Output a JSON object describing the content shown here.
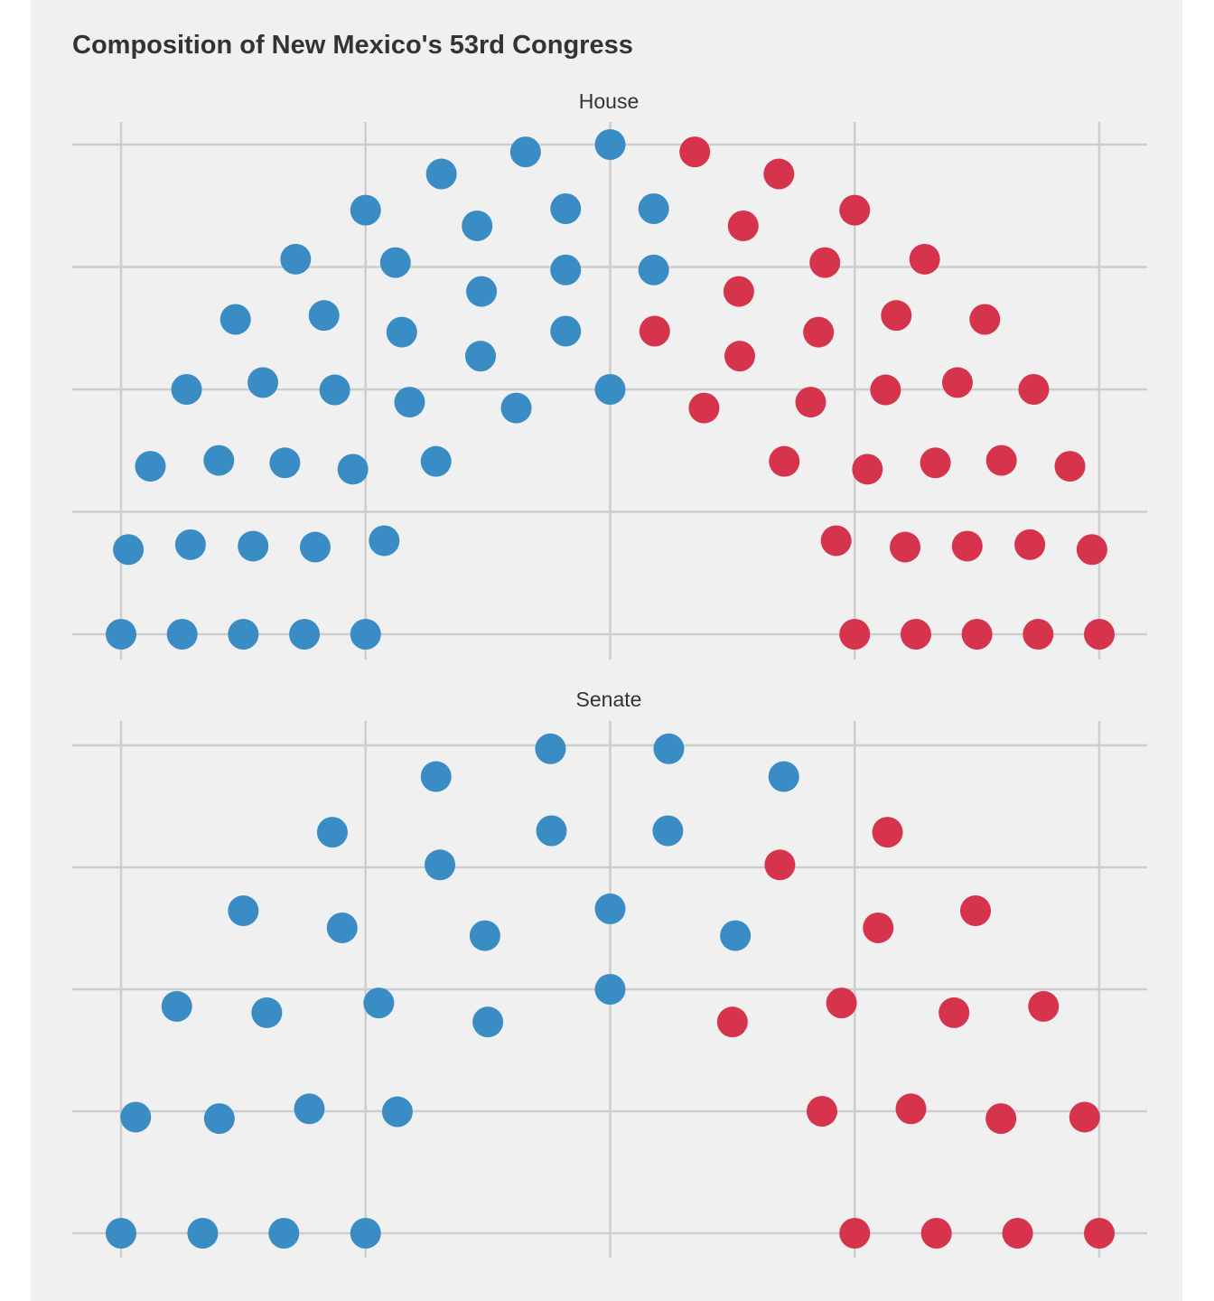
{
  "title": "Composition of New Mexico's 53rd Congress",
  "colors": {
    "democrat": "#3a8cc4",
    "republican": "#d6334c",
    "background": "#f0f0f0",
    "grid": "#cdcdcd"
  },
  "chart_data": [
    {
      "type": "scatter",
      "facet": "House",
      "title": "House",
      "xlim": [
        -1,
        1
      ],
      "ylim": [
        0,
        1
      ],
      "x_gridlines": [
        -1,
        -0.5,
        0,
        0.5,
        1
      ],
      "y_gridlines": [
        0,
        0.25,
        0.5,
        0.75,
        1
      ],
      "grid": true,
      "series": [
        {
          "party": "democrat",
          "points": [
            [
              -1.0,
              0.0
            ],
            [
              -0.875,
              0.0
            ],
            [
              -0.75,
              0.0
            ],
            [
              -0.625,
              0.0
            ],
            [
              -0.5,
              0.0
            ],
            [
              -0.985,
              0.173
            ],
            [
              -0.858,
              0.183
            ],
            [
              -0.73,
              0.18
            ],
            [
              -0.603,
              0.178
            ],
            [
              -0.462,
              0.191
            ],
            [
              -0.94,
              0.343
            ],
            [
              -0.8,
              0.355
            ],
            [
              -0.665,
              0.35
            ],
            [
              -0.526,
              0.337
            ],
            [
              -0.356,
              0.353
            ],
            [
              -0.866,
              0.5
            ],
            [
              -0.71,
              0.514
            ],
            [
              -0.563,
              0.499
            ],
            [
              -0.41,
              0.474
            ],
            [
              -0.192,
              0.462
            ],
            [
              -0.766,
              0.643
            ],
            [
              -0.585,
              0.651
            ],
            [
              -0.426,
              0.617
            ],
            [
              -0.265,
              0.568
            ],
            [
              -0.091,
              0.619
            ],
            [
              -0.643,
              0.766
            ],
            [
              -0.439,
              0.759
            ],
            [
              -0.263,
              0.7
            ],
            [
              -0.091,
              0.744
            ],
            [
              0.089,
              0.744
            ],
            [
              -0.5,
              0.866
            ],
            [
              -0.272,
              0.834
            ],
            [
              -0.091,
              0.869
            ],
            [
              0.089,
              0.869
            ],
            [
              -0.345,
              0.94
            ],
            [
              -0.173,
              0.985
            ],
            [
              0.0,
              1.0
            ],
            [
              0.0,
              0.5
            ]
          ]
        },
        {
          "party": "republican",
          "points": [
            [
              0.5,
              0.0
            ],
            [
              0.625,
              0.0
            ],
            [
              0.75,
              0.0
            ],
            [
              0.875,
              0.0
            ],
            [
              1.0,
              0.0
            ],
            [
              0.462,
              0.191
            ],
            [
              0.603,
              0.178
            ],
            [
              0.73,
              0.18
            ],
            [
              0.858,
              0.183
            ],
            [
              0.985,
              0.173
            ],
            [
              0.356,
              0.353
            ],
            [
              0.526,
              0.337
            ],
            [
              0.665,
              0.35
            ],
            [
              0.8,
              0.355
            ],
            [
              0.94,
              0.343
            ],
            [
              0.192,
              0.462
            ],
            [
              0.41,
              0.474
            ],
            [
              0.563,
              0.499
            ],
            [
              0.71,
              0.514
            ],
            [
              0.866,
              0.5
            ],
            [
              0.091,
              0.619
            ],
            [
              0.265,
              0.568
            ],
            [
              0.426,
              0.617
            ],
            [
              0.585,
              0.651
            ],
            [
              0.766,
              0.643
            ],
            [
              0.263,
              0.7
            ],
            [
              0.439,
              0.759
            ],
            [
              0.643,
              0.766
            ],
            [
              0.272,
              0.834
            ],
            [
              0.5,
              0.866
            ],
            [
              0.173,
              0.985
            ],
            [
              0.345,
              0.94
            ]
          ]
        }
      ]
    },
    {
      "type": "scatter",
      "facet": "Senate",
      "title": "Senate",
      "xlim": [
        -1,
        1
      ],
      "ylim": [
        0,
        1
      ],
      "x_gridlines": [
        -1,
        -0.5,
        0,
        0.5,
        1
      ],
      "y_gridlines": [
        0,
        0.25,
        0.5,
        0.75,
        1
      ],
      "grid": true,
      "series": [
        {
          "party": "democrat",
          "points": [
            [
              -1.0,
              0.0
            ],
            [
              -0.833,
              0.0
            ],
            [
              -0.667,
              0.0
            ],
            [
              -0.5,
              0.0
            ],
            [
              -0.97,
              0.238
            ],
            [
              -0.799,
              0.235
            ],
            [
              -0.615,
              0.255
            ],
            [
              -0.435,
              0.249
            ],
            [
              -0.886,
              0.465
            ],
            [
              -0.702,
              0.452
            ],
            [
              -0.473,
              0.472
            ],
            [
              -0.25,
              0.433
            ],
            [
              -0.75,
              0.661
            ],
            [
              -0.548,
              0.626
            ],
            [
              -0.256,
              0.61
            ],
            [
              -0.568,
              0.822
            ],
            [
              -0.348,
              0.755
            ],
            [
              -0.356,
              0.936
            ],
            [
              -0.122,
              0.993
            ],
            [
              0.12,
              0.993
            ],
            [
              0.355,
              0.936
            ],
            [
              -0.12,
              0.825
            ],
            [
              0.118,
              0.825
            ],
            [
              0.0,
              0.665
            ],
            [
              0.0,
              0.5
            ],
            [
              0.256,
              0.61
            ]
          ]
        },
        {
          "party": "republican",
          "points": [
            [
              0.5,
              0.0
            ],
            [
              0.667,
              0.0
            ],
            [
              0.833,
              0.0
            ],
            [
              1.0,
              0.0
            ],
            [
              0.433,
              0.25
            ],
            [
              0.615,
              0.255
            ],
            [
              0.799,
              0.235
            ],
            [
              0.97,
              0.238
            ],
            [
              0.25,
              0.433
            ],
            [
              0.473,
              0.472
            ],
            [
              0.703,
              0.452
            ],
            [
              0.886,
              0.465
            ],
            [
              0.548,
              0.626
            ],
            [
              0.747,
              0.661
            ],
            [
              0.347,
              0.755
            ],
            [
              0.567,
              0.822
            ]
          ]
        }
      ]
    }
  ]
}
